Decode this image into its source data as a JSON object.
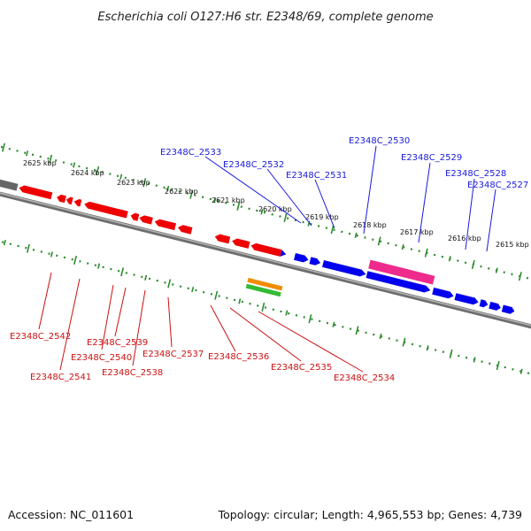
{
  "title": "Escherichia coli O127:H6 str. E2348/69, complete genome",
  "footer": {
    "accession": "Accession: NC_011601",
    "summary": "Topology: circular; Length: 4,965,553 bp; Genes: 4,739"
  },
  "colors": {
    "forward_gene": "#0000ee",
    "reverse_gene": "#ee0000",
    "forward_label": "#1a1adc",
    "reverse_label": "#cc1111",
    "special_gene": "#ee2a8c",
    "rna_orange": "#f08c00",
    "rna_green": "#33bb33",
    "pseudo_gene": "#666666",
    "backbone": "#808080",
    "ruler": "#2e8b2e"
  },
  "ruler_labels": [
    "2625 kbp",
    "2624 kbp",
    "2623 kbp",
    "2622 kbp",
    "2621 kbp",
    "2620 kbp",
    "2619 kbp",
    "2618 kbp",
    "2617 kbp",
    "2616 kbp",
    "2615 kbp"
  ],
  "forward_labels": [
    "E2348C_2533",
    "E2348C_2532",
    "E2348C_2531",
    "E2348C_2530",
    "E2348C_2529",
    "E2348C_2528",
    "E2348C_2527"
  ],
  "reverse_labels": [
    "E2348C_2542",
    "E2348C_2541",
    "E2348C_2540",
    "E2348C_2539",
    "E2348C_2538",
    "E2348C_2537",
    "E2348C_2536",
    "E2348C_2535",
    "E2348C_2534"
  ]
}
